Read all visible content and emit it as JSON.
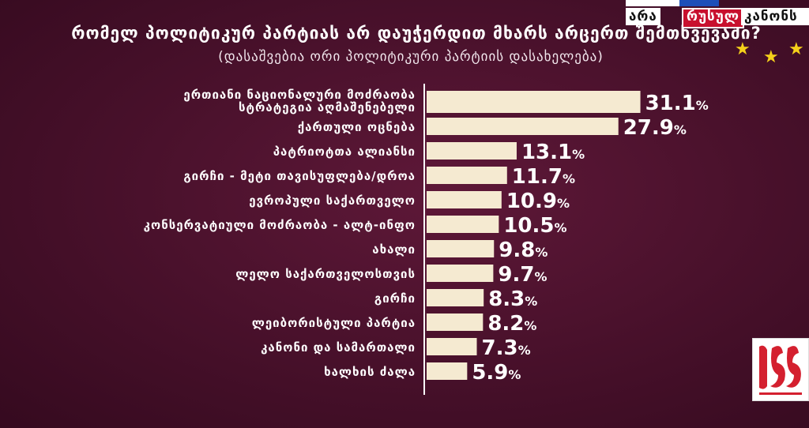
{
  "title": "რომელ პოლიტიკურ პარტიას არ დაუჭერდით მხარს არცერთ შემთხვევაში?",
  "subtitle": "(დასაშვებია ორი პოლიტიკური პარტიის დასახელება)",
  "branding": {
    "tag_ara": "არა",
    "tag_rusul": "რუსულ",
    "tag_kanons": "კანონს"
  },
  "colors": {
    "bar": "#f5ead1",
    "background": "#47102a",
    "axis": "#ffffff",
    "star": "#f5d11a",
    "logo_red": "#d4202f"
  },
  "chart_data": {
    "type": "bar",
    "orientation": "horizontal",
    "unit": "%",
    "categories": [
      [
        "ერთიანი ნაციონალური მოძრაობა",
        "სტრატეგია აღმაშენებელი"
      ],
      [
        "ქართული ოცნება"
      ],
      [
        "პატრიოტთა ალიანსი"
      ],
      [
        "გირჩი - მეტი თავისუფლება/დროა"
      ],
      [
        "ევროპული საქართველო"
      ],
      [
        "კონსერვატიული მოძრაობა - ალტ-ინფო"
      ],
      [
        "ახალი"
      ],
      [
        "ლელო საქართველოსთვის"
      ],
      [
        "გირჩი"
      ],
      [
        "ლეიბორისტული პარტია"
      ],
      [
        "კანონი და სამართალი"
      ],
      [
        "ხალხის ძალა"
      ]
    ],
    "values": [
      31.1,
      27.9,
      13.1,
      11.7,
      10.9,
      10.5,
      9.8,
      9.7,
      8.3,
      8.2,
      7.3,
      5.9
    ],
    "value_labels": [
      "31.1",
      "27.9",
      "13.1",
      "11.7",
      "10.9",
      "10.5",
      "9.8",
      "9.7",
      "8.3",
      "8.2",
      "7.3",
      "5.9"
    ],
    "xlim": [
      0,
      35
    ]
  }
}
